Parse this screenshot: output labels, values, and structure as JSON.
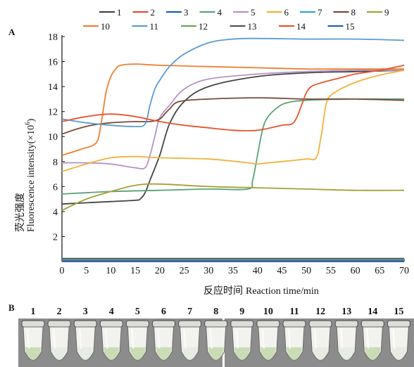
{
  "panel_a_label": "A",
  "panel_b_label": "B",
  "chart_data": {
    "type": "line",
    "xlabel_cn": "反应时间",
    "xlabel_en": "Reaction time/min",
    "ylabel_cn": "荧光强度",
    "ylabel_en": "Fluorescence intensity(×10",
    "ylabel_exp": "6",
    "ylabel_close": ")",
    "xlim": [
      0,
      70
    ],
    "ylim": [
      0,
      18
    ],
    "xticks": [
      0,
      5,
      10,
      15,
      20,
      25,
      30,
      35,
      40,
      45,
      50,
      55,
      60,
      65,
      70
    ],
    "yticks": [
      2,
      4,
      6,
      8,
      10,
      12,
      14,
      16,
      18
    ],
    "grid": false,
    "legend_position": "top",
    "series": [
      {
        "name": "1",
        "color": "#444444",
        "x": [
          0,
          5,
          10,
          15,
          16,
          17,
          18,
          20,
          22,
          25,
          30,
          40,
          50,
          60,
          70
        ],
        "y": [
          4.6,
          4.7,
          4.8,
          4.9,
          5.0,
          5.5,
          6.5,
          8.5,
          11,
          12.8,
          14,
          14.8,
          15.1,
          15.2,
          15.3
        ]
      },
      {
        "name": "2",
        "color": "#e84a3a",
        "x": [
          0,
          20,
          30,
          40,
          50,
          60,
          70
        ],
        "y": [
          0.15,
          0.15,
          0.15,
          0.15,
          0.15,
          0.15,
          0.15
        ]
      },
      {
        "name": "3",
        "color": "#1f5fa8",
        "x": [
          0,
          20,
          30,
          40,
          50,
          60,
          70
        ],
        "y": [
          0.1,
          0.1,
          0.1,
          0.1,
          0.1,
          0.1,
          0.1
        ]
      },
      {
        "name": "4",
        "color": "#5aa378",
        "x": [
          0,
          10,
          20,
          30,
          38,
          39,
          40,
          41,
          42,
          44,
          46,
          50,
          60,
          70
        ],
        "y": [
          5.4,
          5.6,
          5.7,
          5.8,
          5.8,
          6.5,
          8.5,
          10.5,
          11.5,
          12.3,
          12.7,
          12.9,
          13.0,
          13.0
        ]
      },
      {
        "name": "5",
        "color": "#b593c8",
        "x": [
          0,
          5,
          10,
          15,
          17,
          18,
          19,
          20,
          22,
          25,
          30,
          40,
          50,
          60,
          70
        ],
        "y": [
          7.9,
          7.9,
          7.8,
          7.5,
          7.5,
          8.5,
          10,
          11.5,
          12.5,
          13.8,
          14.6,
          15.0,
          15.2,
          15.3,
          15.3
        ]
      },
      {
        "name": "6",
        "color": "#f2b13c",
        "x": [
          0,
          5,
          10,
          15,
          20,
          30,
          38,
          40,
          42,
          45,
          50,
          52,
          53,
          54,
          55,
          58,
          62,
          66,
          70
        ],
        "y": [
          7.2,
          7.8,
          8.3,
          8.4,
          8.3,
          8.2,
          7.9,
          7.8,
          7.9,
          8.0,
          8.2,
          8.3,
          10,
          12.5,
          13.3,
          14,
          14.6,
          15.0,
          15.3
        ]
      },
      {
        "name": "7",
        "color": "#35a4d6",
        "x": [
          0,
          20,
          30,
          40,
          50,
          60,
          70
        ],
        "y": [
          0.12,
          0.12,
          0.12,
          0.12,
          0.12,
          0.12,
          0.12
        ]
      },
      {
        "name": "8",
        "color": "#7a4a3a",
        "x": [
          0,
          3,
          6,
          10,
          15,
          18,
          20,
          21,
          22,
          24,
          30,
          40,
          50,
          60,
          70
        ],
        "y": [
          10.2,
          10.6,
          10.9,
          11.1,
          11.2,
          11.2,
          11.4,
          11.8,
          12.2,
          12.8,
          13.0,
          13.1,
          13.0,
          13.0,
          12.9
        ]
      },
      {
        "name": "9",
        "color": "#a8a035",
        "x": [
          0,
          5,
          10,
          15,
          20,
          30,
          40,
          50,
          60,
          70
        ],
        "y": [
          4.1,
          5.0,
          5.6,
          6.1,
          6.2,
          6.0,
          5.9,
          5.8,
          5.7,
          5.7
        ]
      },
      {
        "name": "10",
        "color": "#f07f31",
        "x": [
          0,
          4,
          7,
          8,
          9,
          10,
          11,
          12,
          15,
          20,
          30,
          40,
          50,
          52,
          55,
          60,
          65,
          70
        ],
        "y": [
          8.5,
          9.0,
          9.5,
          11,
          13.5,
          14.8,
          15.4,
          15.7,
          15.8,
          15.7,
          15.6,
          15.5,
          15.4,
          15.4,
          15.4,
          15.4,
          15.4,
          15.4
        ]
      },
      {
        "name": "11",
        "color": "#5b9bd5",
        "x": [
          0,
          5,
          10,
          15,
          17,
          18,
          19,
          20,
          22,
          25,
          30,
          35,
          40,
          50,
          60,
          70
        ],
        "y": [
          11.4,
          11.1,
          10.9,
          10.8,
          11.0,
          12.5,
          13.8,
          14.5,
          15.6,
          16.6,
          17.5,
          17.8,
          17.85,
          17.8,
          17.8,
          17.7
        ]
      },
      {
        "name": "12",
        "color": "#6aa556",
        "x": [
          0,
          10,
          20,
          30,
          40,
          50,
          60,
          70
        ],
        "y": [
          0.2,
          0.2,
          0.2,
          0.2,
          0.2,
          0.2,
          0.2,
          0.2
        ]
      },
      {
        "name": "13",
        "color": "#555555",
        "x": [
          0,
          10,
          20,
          30,
          40,
          50,
          60,
          70
        ],
        "y": [
          0.25,
          0.25,
          0.25,
          0.25,
          0.25,
          0.25,
          0.25,
          0.25
        ]
      },
      {
        "name": "14",
        "color": "#e8532f",
        "x": [
          0,
          5,
          10,
          15,
          20,
          25,
          30,
          35,
          40,
          45,
          47,
          48,
          49,
          50,
          51,
          53,
          56,
          60,
          65,
          70
        ],
        "y": [
          11.2,
          11.6,
          11.8,
          11.6,
          11.2,
          10.9,
          10.7,
          10.5,
          10.5,
          10.9,
          11.0,
          11.5,
          12.5,
          13.5,
          14.0,
          14.3,
          14.6,
          15.0,
          15.3,
          15.7
        ]
      },
      {
        "name": "15",
        "color": "#2a5db0",
        "x": [
          0,
          20,
          30,
          40,
          50,
          60,
          70
        ],
        "y": [
          0.05,
          0.05,
          0.05,
          0.05,
          0.05,
          0.05,
          0.05
        ]
      }
    ]
  },
  "tube_labels": [
    "1",
    "2",
    "3",
    "4",
    "5",
    "6",
    "7",
    "8",
    "9",
    "10",
    "11",
    "12",
    "13",
    "14",
    "15"
  ],
  "tube_colors": {
    "liquid_positive": "#c9dcb6",
    "liquid_negative": "#e6ece4",
    "background": "#8c8c8c",
    "tube_body": "#f2f2ee"
  },
  "tube_positive": [
    true,
    false,
    false,
    true,
    true,
    true,
    false,
    true,
    true,
    true,
    true,
    false,
    false,
    true,
    false
  ]
}
